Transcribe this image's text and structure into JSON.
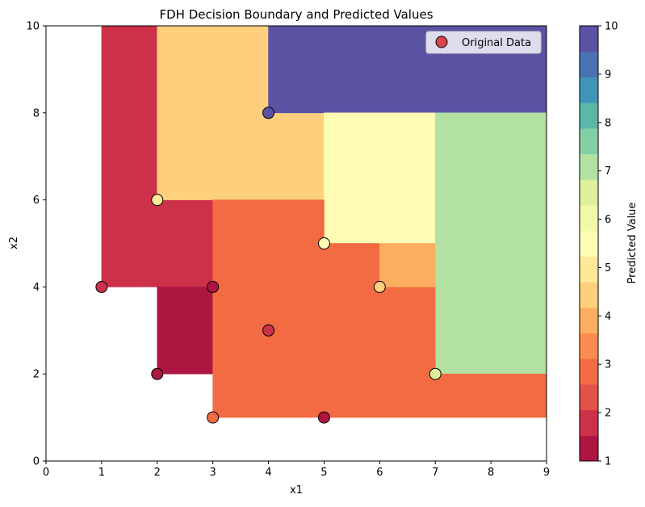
{
  "chart_data": {
    "type": "heatmap",
    "title": "FDH Decision Boundary and Predicted Values",
    "xlabel": "x1",
    "ylabel": "x2",
    "xlim": [
      0,
      9
    ],
    "ylim": [
      0,
      10
    ],
    "xticks": [
      "0",
      "1",
      "2",
      "3",
      "4",
      "5",
      "6",
      "7",
      "8",
      "9"
    ],
    "yticks": [
      "0",
      "2",
      "4",
      "6",
      "8",
      "10"
    ],
    "grid": false,
    "legend": {
      "placement": "top-right",
      "entries": [
        {
          "label": "Original Data"
        }
      ]
    },
    "colorbar": {
      "label": "Predicted Value",
      "range": [
        1,
        10
      ],
      "ticks": [
        "1",
        "2",
        "3",
        "4",
        "5",
        "6",
        "7",
        "8",
        "9",
        "10"
      ],
      "levels": [
        "#ac1641",
        "#cc3149",
        "#e25249",
        "#f36b42",
        "#fb8c51",
        "#fdad60",
        "#fed07e",
        "#fee999",
        "#fefbb5",
        "#f1f9a9",
        "#def19a",
        "#b3e1a2",
        "#85cfa5",
        "#5db7a9",
        "#3f95b6",
        "#4a71b3",
        "#5a53a4"
      ]
    },
    "regions": [
      {
        "x": [
          1,
          2
        ],
        "y": [
          4,
          10
        ],
        "value": 2
      },
      {
        "x": [
          2,
          3
        ],
        "y": [
          4,
          6
        ],
        "value": 2
      },
      {
        "x": [
          2,
          3
        ],
        "y": [
          2,
          4
        ],
        "value": 1
      },
      {
        "x": [
          2,
          4
        ],
        "y": [
          6,
          10
        ],
        "value": 4.5
      },
      {
        "x": [
          4,
          5
        ],
        "y": [
          6,
          8
        ],
        "value": 4.5
      },
      {
        "x": [
          4,
          9
        ],
        "y": [
          8,
          10
        ],
        "value": 10
      },
      {
        "x": [
          5,
          7
        ],
        "y": [
          5,
          8
        ],
        "value": 5.5
      },
      {
        "x": [
          7,
          9
        ],
        "y": [
          2,
          8
        ],
        "value": 7
      },
      {
        "x": [
          3,
          5
        ],
        "y": [
          1,
          6
        ],
        "value": 3
      },
      {
        "x": [
          5,
          7
        ],
        "y": [
          1,
          4
        ],
        "value": 3
      },
      {
        "x": [
          5,
          6
        ],
        "y": [
          4,
          5
        ],
        "value": 3
      },
      {
        "x": [
          7,
          9
        ],
        "y": [
          1,
          2
        ],
        "value": 3
      },
      {
        "x": [
          6,
          7
        ],
        "y": [
          4,
          5
        ],
        "value": 4
      }
    ],
    "series": [
      {
        "name": "Original Data",
        "points": [
          {
            "x": 1,
            "y": 4,
            "value": 2
          },
          {
            "x": 2,
            "y": 2,
            "value": 1
          },
          {
            "x": 2,
            "y": 6,
            "value": 5
          },
          {
            "x": 3,
            "y": 1,
            "value": 3
          },
          {
            "x": 3,
            "y": 4,
            "value": 1
          },
          {
            "x": 4,
            "y": 3,
            "value": 2
          },
          {
            "x": 4,
            "y": 8,
            "value": 10
          },
          {
            "x": 5,
            "y": 1,
            "value": 1
          },
          {
            "x": 5,
            "y": 5,
            "value": 5.5
          },
          {
            "x": 6,
            "y": 4,
            "value": 4.5
          },
          {
            "x": 7,
            "y": 2,
            "value": 6.5
          }
        ]
      }
    ]
  }
}
